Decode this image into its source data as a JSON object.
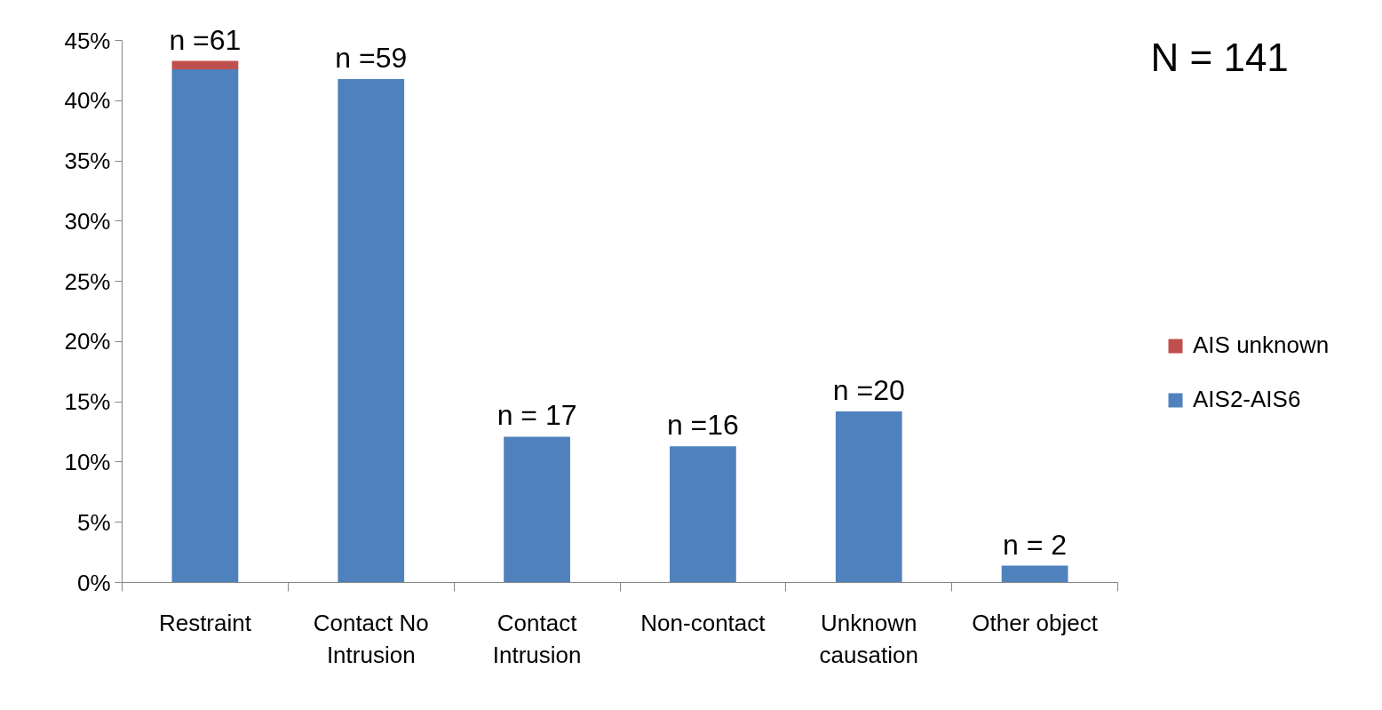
{
  "chart_data": {
    "type": "bar",
    "stacked": true,
    "categories": [
      "Restraint",
      "Contact No Intrusion",
      "Contact Intrusion",
      "Non-contact",
      "Unknown causation",
      "Other object"
    ],
    "series": [
      {
        "name": "AIS2-AIS6",
        "color": "#4f81bd",
        "values": [
          42.6,
          41.8,
          12.1,
          11.3,
          14.2,
          1.4
        ]
      },
      {
        "name": "AIS unknown",
        "color": "#c0504d",
        "values": [
          0.7,
          null,
          null,
          null,
          null,
          null
        ]
      }
    ],
    "ylim": [
      0,
      45
    ],
    "yticks": [
      {
        "value": 0,
        "label": "0%"
      },
      {
        "value": 5,
        "label": "5%"
      },
      {
        "value": 10,
        "label": "10%"
      },
      {
        "value": 15,
        "label": "15%"
      },
      {
        "value": 20,
        "label": "20%"
      },
      {
        "value": 25,
        "label": "25%"
      },
      {
        "value": 30,
        "label": "30%"
      },
      {
        "value": 35,
        "label": "35%"
      },
      {
        "value": 40,
        "label": "40%"
      },
      {
        "value": 45,
        "label": "45%"
      }
    ],
    "grid": false,
    "legend": "right",
    "annotations": [
      {
        "text": "n =61",
        "x": "Restraint",
        "y": 43.3
      },
      {
        "text": "n =59",
        "x": "Contact No Intrusion",
        "y": 41.8
      },
      {
        "text": "n = 17",
        "x": "Contact Intrusion",
        "y": 12.1
      },
      {
        "text": "n =16",
        "x": "Non-contact",
        "y": 11.3
      },
      {
        "text": "n =20",
        "x": "Unknown causation",
        "y": 14.2
      },
      {
        "text": "n = 2",
        "x": "Other object",
        "y": 1.4
      },
      "N = 141"
    ]
  }
}
